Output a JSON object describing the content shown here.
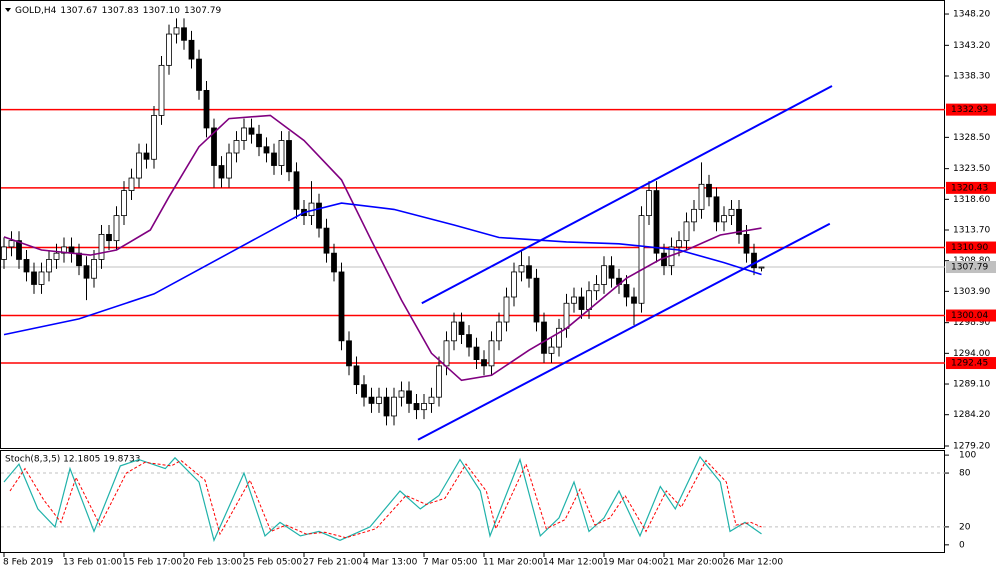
{
  "chart_data": {
    "type": "candlestick",
    "title": "GOLD,H4",
    "quote": [
      "1307.67",
      "1307.83",
      "1307.10",
      "1307.79"
    ],
    "categories": [
      "8 Feb 2019",
      null,
      null,
      null,
      null,
      null,
      null,
      null,
      "13 Feb 01:00",
      null,
      null,
      null,
      null,
      null,
      null,
      null,
      "15 Feb 17:00",
      null,
      null,
      null,
      null,
      null,
      null,
      null,
      "20 Feb 13:00",
      null,
      null,
      null,
      null,
      null,
      null,
      null,
      "25 Feb 05:00",
      null,
      null,
      null,
      null,
      null,
      null,
      null,
      "27 Feb 21:00",
      null,
      null,
      null,
      null,
      null,
      null,
      null,
      "4 Mar 13:00",
      null,
      null,
      null,
      null,
      null,
      null,
      null,
      "7 Mar 05:00",
      null,
      null,
      null,
      null,
      null,
      null,
      null,
      "11 Mar 20:00",
      null,
      null,
      null,
      null,
      null,
      null,
      null,
      "14 Mar 12:00",
      null,
      null,
      null,
      null,
      null,
      null,
      null,
      "19 Mar 04:00",
      null,
      null,
      null,
      null,
      null,
      null,
      null,
      "21 Mar 20:00",
      null,
      null,
      null,
      null,
      null,
      null,
      null,
      "26 Mar 12:00",
      null,
      null,
      null,
      null,
      null
    ],
    "candles": [
      [
        1309,
        1312.5,
        1307.5,
        1311
      ],
      [
        1311,
        1313.5,
        1309.5,
        1312
      ],
      [
        1312,
        1313.5,
        1307.5,
        1309
      ],
      [
        1309,
        1310.5,
        1305.5,
        1307
      ],
      [
        1307,
        1308.5,
        1303.5,
        1305
      ],
      [
        1305,
        1308.5,
        1303.5,
        1307
      ],
      [
        1307,
        1310.5,
        1305.5,
        1309
      ],
      [
        1309,
        1311.5,
        1307.5,
        1310
      ],
      [
        1310,
        1312.5,
        1308.5,
        1311
      ],
      [
        1311,
        1312.5,
        1308.5,
        1310
      ],
      [
        1310,
        1311.5,
        1306.5,
        1308
      ],
      [
        1308,
        1309.5,
        1302.5,
        1306
      ],
      [
        1306,
        1310.5,
        1304.5,
        1309
      ],
      [
        1309,
        1314.5,
        1307.5,
        1313
      ],
      [
        1313,
        1314.5,
        1310.5,
        1312
      ],
      [
        1312,
        1317.5,
        1310.5,
        1316
      ],
      [
        1316,
        1321.5,
        1314.5,
        1320
      ],
      [
        1320,
        1323.5,
        1318.5,
        1322
      ],
      [
        1322,
        1327.5,
        1320.5,
        1326
      ],
      [
        1326,
        1327.5,
        1323.5,
        1325
      ],
      [
        1325,
        1333.5,
        1323.5,
        1332
      ],
      [
        1332,
        1341.5,
        1330.5,
        1340
      ],
      [
        1340,
        1346.5,
        1338.5,
        1345
      ],
      [
        1345,
        1347.5,
        1343.5,
        1346
      ],
      [
        1346,
        1347.5,
        1342.5,
        1344
      ],
      [
        1344,
        1345.5,
        1339.5,
        1341
      ],
      [
        1341,
        1342.5,
        1334.5,
        1336
      ],
      [
        1336,
        1337.5,
        1328.5,
        1330
      ],
      [
        1330,
        1331.5,
        1320.5,
        1324
      ],
      [
        1324,
        1325.5,
        1320.5,
        1322
      ],
      [
        1322,
        1327.5,
        1320.5,
        1326
      ],
      [
        1326,
        1329.5,
        1324.5,
        1328
      ],
      [
        1328,
        1331.5,
        1326.5,
        1330
      ],
      [
        1330,
        1331.5,
        1327.5,
        1329
      ],
      [
        1329,
        1330.5,
        1325.5,
        1327
      ],
      [
        1327,
        1328.5,
        1324.5,
        1326
      ],
      [
        1326,
        1327.5,
        1322.5,
        1324
      ],
      [
        1324,
        1329.5,
        1322.5,
        1328
      ],
      [
        1328,
        1329.5,
        1321.5,
        1323
      ],
      [
        1323,
        1324.5,
        1315.5,
        1317
      ],
      [
        1317,
        1318.5,
        1314.5,
        1316
      ],
      [
        1316,
        1321.5,
        1314.5,
        1318
      ],
      [
        1318,
        1319.5,
        1312.5,
        1314
      ],
      [
        1314,
        1315.5,
        1308.5,
        1310
      ],
      [
        1310,
        1311.5,
        1305.5,
        1307
      ],
      [
        1307,
        1308.5,
        1294.5,
        1296
      ],
      [
        1296,
        1297.5,
        1290.5,
        1292
      ],
      [
        1292,
        1293.5,
        1287.5,
        1289
      ],
      [
        1289,
        1290.5,
        1285.5,
        1287
      ],
      [
        1287,
        1288.5,
        1284.5,
        1286
      ],
      [
        1286,
        1288.5,
        1284.5,
        1287
      ],
      [
        1287,
        1288.5,
        1282.5,
        1284
      ],
      [
        1284,
        1288.5,
        1282.5,
        1287
      ],
      [
        1287,
        1289.5,
        1285.5,
        1288
      ],
      [
        1288,
        1289.5,
        1284.5,
        1286
      ],
      [
        1286,
        1287.5,
        1283.5,
        1285
      ],
      [
        1285,
        1287.5,
        1283.5,
        1286
      ],
      [
        1286,
        1288.5,
        1284.5,
        1287
      ],
      [
        1287,
        1293.5,
        1285.5,
        1292
      ],
      [
        1292,
        1297.5,
        1290.5,
        1296
      ],
      [
        1296,
        1300.5,
        1294.5,
        1299
      ],
      [
        1299,
        1300.5,
        1295.5,
        1297
      ],
      [
        1297,
        1298.5,
        1293.5,
        1295
      ],
      [
        1295,
        1296.5,
        1291.5,
        1293
      ],
      [
        1293,
        1294.5,
        1290.5,
        1292
      ],
      [
        1292,
        1297.5,
        1290.5,
        1296
      ],
      [
        1296,
        1300.5,
        1294.5,
        1299
      ],
      [
        1299,
        1304.5,
        1297.5,
        1303
      ],
      [
        1303,
        1308.5,
        1301.5,
        1307
      ],
      [
        1307,
        1310.5,
        1305.5,
        1308
      ],
      [
        1308,
        1309.5,
        1304.5,
        1306
      ],
      [
        1306,
        1307.5,
        1297.5,
        1299
      ],
      [
        1299,
        1300.5,
        1292.5,
        1294
      ],
      [
        1294,
        1296.5,
        1292.5,
        1295
      ],
      [
        1295,
        1299.5,
        1293.5,
        1298
      ],
      [
        1298,
        1303.5,
        1296.5,
        1302
      ],
      [
        1302,
        1304.5,
        1300.5,
        1303
      ],
      [
        1303,
        1304.5,
        1299.5,
        1301
      ],
      [
        1301,
        1305.5,
        1299.5,
        1304
      ],
      [
        1304,
        1306.5,
        1302.5,
        1305
      ],
      [
        1305,
        1309.5,
        1303.5,
        1308
      ],
      [
        1308,
        1309.5,
        1304.5,
        1306
      ],
      [
        1306,
        1307.5,
        1303.5,
        1305
      ],
      [
        1305,
        1306.5,
        1301.5,
        1303
      ],
      [
        1303,
        1304.5,
        1298.5,
        1302
      ],
      [
        1302,
        1317.5,
        1300.5,
        1316
      ],
      [
        1316,
        1321.5,
        1314.5,
        1320
      ],
      [
        1320,
        1321.5,
        1308.5,
        1310
      ],
      [
        1310,
        1311.5,
        1306.5,
        1308
      ],
      [
        1308,
        1312.5,
        1306.5,
        1311
      ],
      [
        1311,
        1313.5,
        1309.5,
        1312
      ],
      [
        1312,
        1316.5,
        1310.5,
        1315
      ],
      [
        1315,
        1318.5,
        1313.5,
        1317
      ],
      [
        1317,
        1324.5,
        1315.5,
        1321
      ],
      [
        1321,
        1322.5,
        1317.5,
        1319
      ],
      [
        1319,
        1320.5,
        1313.5,
        1315
      ],
      [
        1315,
        1317.5,
        1313.5,
        1316
      ],
      [
        1316,
        1318.5,
        1314.5,
        1317
      ],
      [
        1317,
        1318.5,
        1311.5,
        1313
      ],
      [
        1313,
        1314.5,
        1308.5,
        1310
      ],
      [
        1310,
        1311.5,
        1306.5,
        1307.67
      ],
      [
        1307.67,
        1307.83,
        1307.1,
        1307.79
      ]
    ],
    "ylim": [
      1278.88,
      1350.44
    ],
    "yticks": [
      {
        "value": 1348.2,
        "label": "1348.20"
      },
      {
        "value": 1343.2,
        "label": "1343.20"
      },
      {
        "value": 1338.3,
        "label": "1338.30"
      },
      {
        "value": 1328.5,
        "label": "1328.50"
      },
      {
        "value": 1323.5,
        "label": "1323.50"
      },
      {
        "value": 1318.6,
        "label": "1318.60"
      },
      {
        "value": 1313.7,
        "label": "1313.70"
      },
      {
        "value": 1308.8,
        "label": "1308.80"
      },
      {
        "value": 1303.9,
        "label": "1303.90"
      },
      {
        "value": 1298.9,
        "label": "1298.90"
      },
      {
        "value": 1294,
        "label": "1294.00"
      },
      {
        "value": 1289.1,
        "label": "1289.10"
      },
      {
        "value": 1284.2,
        "label": "1284.20"
      },
      {
        "value": 1279.2,
        "label": "1279.20"
      }
    ],
    "levels": [
      {
        "value": 1332.93,
        "label": "1332.93"
      },
      {
        "value": 1320.43,
        "label": "1320.43"
      },
      {
        "value": 1310.9,
        "label": "1310.90"
      },
      {
        "value": 1300.04,
        "label": "1300.04"
      },
      {
        "value": 1292.45,
        "label": "1292.45"
      }
    ],
    "level_color": "#ff0000",
    "current_price": {
      "value": 1307.79,
      "label": "1307.79"
    },
    "moving_averages": [
      {
        "color": "#800080",
        "x": [
          0,
          5,
          11.5,
          15,
          19.5,
          22,
          26,
          30,
          35.5,
          40,
          45,
          49,
          53,
          57,
          61,
          65,
          70,
          75,
          79.5,
          83,
          87.5,
          91,
          95.5,
          101
        ],
        "values": [
          1312.6,
          1310.5,
          1309.7,
          1310.5,
          1313.7,
          1319,
          1327,
          1331.5,
          1332,
          1328,
          1321.7,
          1312,
          1302.5,
          1294,
          1289.7,
          1290.5,
          1294.5,
          1298,
          1302.5,
          1306,
          1309,
          1310.5,
          1312.9,
          1314
        ]
      },
      {
        "color": "#0000ff",
        "x": [
          0,
          10,
          20,
          30,
          40,
          45,
          52,
          60,
          66,
          75,
          82,
          90,
          96,
          101
        ],
        "values": [
          1297,
          1299.5,
          1303.5,
          1310,
          1316.5,
          1318,
          1317,
          1314.5,
          1312.5,
          1311.8,
          1311.5,
          1310.5,
          1308.5,
          1306.6
        ]
      }
    ],
    "trendlines": [
      {
        "color": "#0000ff",
        "x": [
          55.7,
          110.4
        ],
        "values": [
          1302.0,
          1336.7
        ]
      },
      {
        "color": "#0000ff",
        "x": [
          55.2,
          110.1
        ],
        "values": [
          1280.2,
          1314.7
        ]
      }
    ],
    "indicator": {
      "title": "Stoch(8,3,5) 12.1805 19.8733",
      "ylim": [
        -9.1,
        105.7
      ],
      "yticks": [
        0,
        20,
        80,
        100
      ],
      "levels": [
        20,
        80
      ],
      "series": [
        {
          "color": "#20b2aa",
          "x": [
            0,
            2,
            4.5,
            6.8,
            8.8,
            12,
            15.5,
            18,
            21.5,
            22.8,
            26,
            28,
            32,
            34.8,
            36.8,
            39.5,
            42,
            44.8,
            48.8,
            52.8,
            55.5,
            58,
            60.8,
            63.5,
            64.8,
            68.8,
            71.5,
            74,
            76,
            78,
            80,
            82,
            84.8,
            87.5,
            89.5,
            92.8,
            95.5,
            96.8,
            98.8,
            101
          ],
          "values": [
            70,
            90,
            40,
            20,
            85,
            15,
            88,
            95,
            85,
            97,
            70,
            5,
            80,
            10,
            25,
            10,
            15,
            5,
            20,
            60,
            40,
            55,
            95,
            60,
            10,
            95,
            10,
            30,
            70,
            15,
            30,
            60,
            10,
            65,
            40,
            98,
            70,
            15,
            25,
            12.18
          ]
        },
        {
          "color": "#ff0000",
          "dashed": true,
          "x": [
            0.8,
            2.8,
            5.3,
            7.6,
            9.6,
            12.8,
            16.3,
            18.8,
            22.3,
            23.6,
            26.8,
            28.8,
            32.8,
            35.6,
            37.6,
            40.3,
            42.8,
            45.6,
            49.6,
            53.6,
            56.3,
            58.8,
            61.6,
            64.3,
            65.6,
            69.6,
            72.3,
            74.8,
            76.8,
            78.8,
            80.8,
            82.8,
            85.6,
            88.3,
            90.3,
            93.6,
            96.3,
            97.6,
            99.6,
            101
          ],
          "values": [
            60,
            85,
            50,
            25,
            75,
            22,
            80,
            92,
            88,
            94,
            72,
            12,
            72,
            15,
            22,
            12,
            14,
            8,
            18,
            55,
            45,
            52,
            90,
            60,
            18,
            90,
            18,
            28,
            62,
            22,
            30,
            55,
            15,
            60,
            42,
            94,
            70,
            22,
            25,
            19.87
          ]
        }
      ]
    }
  }
}
